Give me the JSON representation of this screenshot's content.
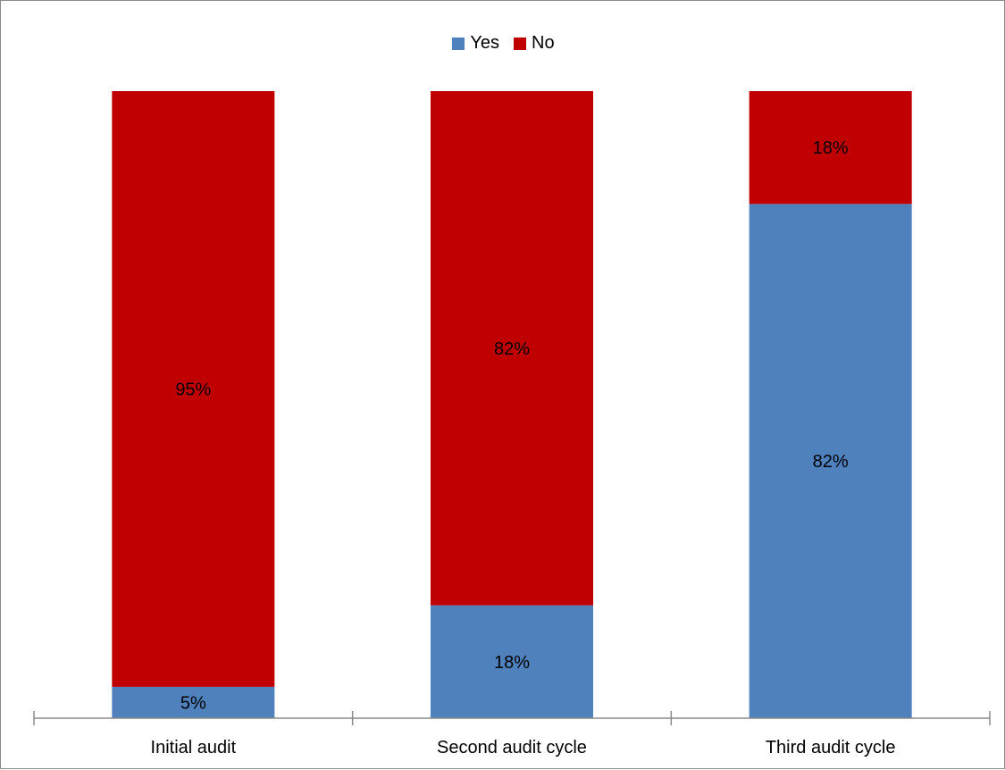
{
  "chart_data": {
    "type": "bar",
    "stacked": true,
    "categories": [
      "Initial audit",
      "Second audit cycle",
      "Third audit cycle"
    ],
    "series": [
      {
        "name": "Yes",
        "values": [
          5,
          18,
          82
        ],
        "color": "#4F81BD"
      },
      {
        "name": "No",
        "values": [
          95,
          82,
          18
        ],
        "color": "#C00000"
      }
    ],
    "data_labels": {
      "Yes": [
        "5%",
        "18%",
        "82%"
      ],
      "No": [
        "95%",
        "82%",
        "18%"
      ]
    },
    "ylim": [
      0,
      100
    ],
    "y_axis_visible": false,
    "grid": false,
    "legend_position": "top"
  }
}
